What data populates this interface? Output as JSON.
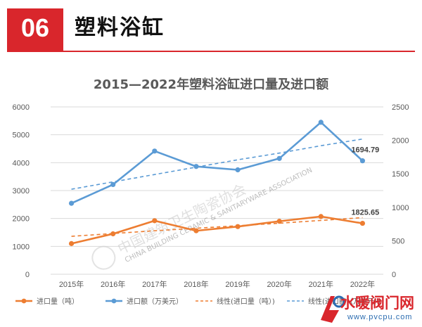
{
  "header": {
    "number": "06",
    "title": "塑料浴缸"
  },
  "colors": {
    "accent": "#d9262c",
    "volume": "#ed7d31",
    "value": "#5b9bd5"
  },
  "watermark": {
    "text": "中国建筑卫生陶瓷协会",
    "text_en": "CHINA BUILDING CERAMIC & SANITARYWARE ASSOCIATION"
  },
  "logo": {
    "name": "水暖阀门网",
    "url": "www.pvcpu.com"
  },
  "chart_data": {
    "type": "line",
    "title": "2015—2022年塑料浴缸进口量及进口额",
    "categories": [
      "2015年",
      "2016年",
      "2017年",
      "2018年",
      "2019年",
      "2020年",
      "2021年",
      "2022年"
    ],
    "y_left": {
      "ylim": [
        0,
        6000
      ],
      "ticks": [
        0,
        1000,
        2000,
        3000,
        4000,
        5000,
        6000
      ]
    },
    "y_right": {
      "ylim": [
        0,
        2500
      ],
      "ticks": [
        0,
        500,
        1000,
        1500,
        2000,
        2500
      ]
    },
    "series": [
      {
        "name": "进口量（吨）",
        "axis": "left",
        "color": "#ed7d31",
        "values": [
          1100,
          1450,
          1920,
          1560,
          1710,
          1900,
          2070,
          1825.65
        ]
      },
      {
        "name": "进口额（万美元）",
        "axis": "right",
        "color": "#5b9bd5",
        "values": [
          1060,
          1340,
          1840,
          1610,
          1560,
          1730,
          2270,
          1694.79
        ]
      }
    ],
    "trendlines": [
      {
        "name": "线性(进口量（吨）)",
        "axis": "left",
        "color": "#ed7d31",
        "style": "dashed",
        "values": [
          1360,
          1460,
          1560,
          1650,
          1740,
          1830,
          1930,
          2030
        ]
      },
      {
        "name": "线性(进口额（万美元）)",
        "axis": "right",
        "color": "#5b9bd5",
        "style": "dashed",
        "values": [
          1270,
          1380,
          1490,
          1600,
          1710,
          1810,
          1920,
          2020
        ]
      }
    ],
    "data_labels": [
      {
        "series": 1,
        "index": 7,
        "text": "1694.79"
      },
      {
        "series": 0,
        "index": 7,
        "text": "1825.65"
      }
    ],
    "legend": {
      "position": "bottom",
      "entries": [
        "进口量（吨）",
        "进口额（万美元）",
        "线性(进口量（吨）)",
        "线性(进口额（万美元）)"
      ]
    }
  }
}
